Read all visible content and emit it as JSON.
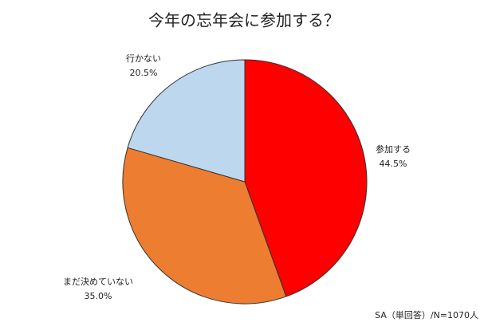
{
  "chart_data": {
    "type": "pie",
    "title": "今年の忘年会に参加する？",
    "categories": [
      "参加する",
      "まだ決めていない",
      "行かない"
    ],
    "values": [
      44.5,
      35.0,
      20.5
    ],
    "value_labels": [
      "44.5%",
      "35.0%",
      "20.5%"
    ],
    "colors": [
      "#ff0000",
      "#ed7d31",
      "#bdd7ee"
    ],
    "note": "SA（単回答）/N=1070人"
  }
}
